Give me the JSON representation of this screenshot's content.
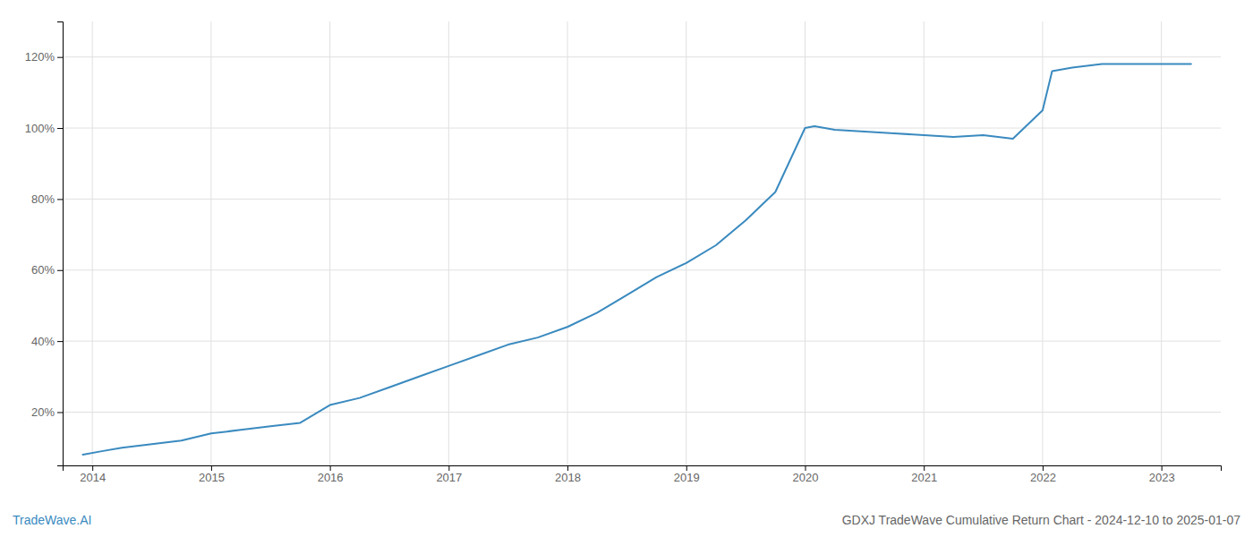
{
  "chart_data": {
    "type": "line",
    "title": "GDXJ TradeWave Cumulative Return Chart - 2024-12-10 to 2025-01-07",
    "annotations": [
      "TradeWave.AI"
    ],
    "color": "#3a8abf",
    "x": [
      2013.92,
      2014.08,
      2014.25,
      2014.5,
      2014.75,
      2015.0,
      2015.25,
      2015.5,
      2015.75,
      2016.0,
      2016.25,
      2016.5,
      2016.75,
      2017.0,
      2017.25,
      2017.5,
      2017.75,
      2018.0,
      2018.25,
      2018.5,
      2018.75,
      2019.0,
      2019.25,
      2019.5,
      2019.75,
      2020.0,
      2020.08,
      2020.25,
      2020.5,
      2020.75,
      2021.0,
      2021.25,
      2021.5,
      2021.75,
      2022.0,
      2022.08,
      2022.25,
      2022.5,
      2022.75,
      2023.0,
      2023.25
    ],
    "values": [
      8,
      9,
      10,
      11,
      12,
      14,
      15,
      16,
      17,
      22,
      24,
      27,
      30,
      33,
      36,
      39,
      41,
      44,
      48,
      53,
      58,
      62,
      67,
      74,
      82,
      100,
      100.5,
      99.5,
      99,
      98.5,
      98,
      97.5,
      98,
      97,
      105,
      116,
      117,
      118,
      118,
      118,
      118
    ],
    "xlim": [
      2013.75,
      2023.5
    ],
    "xticks": [
      2014,
      2015,
      2016,
      2017,
      2018,
      2019,
      2020,
      2021,
      2022,
      2023
    ],
    "ylim": [
      5,
      130
    ],
    "yticks": [
      {
        "value": 20,
        "label": "20%"
      },
      {
        "value": 40,
        "label": "40%"
      },
      {
        "value": 60,
        "label": "60%"
      },
      {
        "value": 80,
        "label": "80%"
      },
      {
        "value": 100,
        "label": "100%"
      },
      {
        "value": 120,
        "label": "120%"
      }
    ],
    "grid": true
  }
}
